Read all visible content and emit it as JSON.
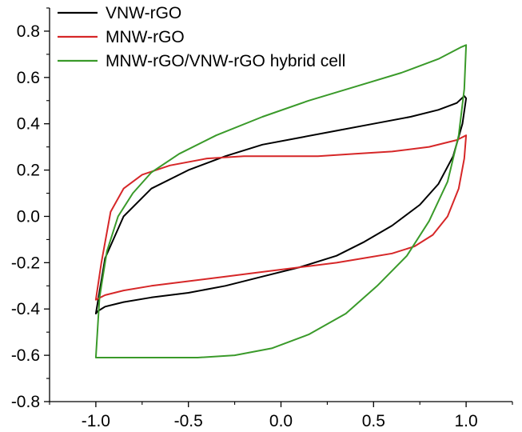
{
  "chart_data": {
    "type": "line",
    "title": "",
    "xlabel": "",
    "ylabel": "",
    "xlim": [
      -1.25,
      1.25
    ],
    "ylim": [
      -0.8,
      0.9
    ],
    "xticks": [
      -1.0,
      -0.5,
      0.0,
      0.5,
      1.0
    ],
    "xtick_labels": [
      "-1.0",
      "-0.5",
      "0.0",
      "0.5",
      "1.0"
    ],
    "yticks": [
      -0.8,
      -0.6,
      -0.4,
      -0.2,
      0.0,
      0.2,
      0.4,
      0.6,
      0.8
    ],
    "ytick_labels": [
      "-0.8",
      "-0.6",
      "-0.4",
      "-0.2",
      "0.0",
      "0.2",
      "0.4",
      "0.6",
      "0.8"
    ],
    "grid": false,
    "legend_position": "top-left",
    "series": [
      {
        "name": "VNW-rGO",
        "color": "#000000",
        "x": [
          -1.0,
          -0.95,
          -0.85,
          -0.7,
          -0.5,
          -0.3,
          -0.1,
          0.1,
          0.3,
          0.5,
          0.7,
          0.85,
          0.95,
          0.99,
          1.0,
          0.98,
          0.93,
          0.85,
          0.75,
          0.6,
          0.45,
          0.3,
          0.1,
          -0.1,
          -0.3,
          -0.5,
          -0.7,
          -0.85,
          -0.95,
          -0.99,
          -1.0
        ],
        "y": [
          -0.42,
          -0.18,
          0.0,
          0.12,
          0.2,
          0.26,
          0.31,
          0.34,
          0.37,
          0.4,
          0.43,
          0.46,
          0.49,
          0.52,
          0.51,
          0.4,
          0.26,
          0.14,
          0.05,
          -0.04,
          -0.11,
          -0.17,
          -0.22,
          -0.26,
          -0.3,
          -0.33,
          -0.35,
          -0.37,
          -0.39,
          -0.41,
          -0.42
        ]
      },
      {
        "name": "MNW-rGO",
        "color": "#d62728",
        "x": [
          -1.0,
          -0.97,
          -0.92,
          -0.85,
          -0.75,
          -0.6,
          -0.4,
          -0.2,
          0.0,
          0.2,
          0.4,
          0.6,
          0.8,
          0.95,
          1.0,
          0.99,
          0.96,
          0.9,
          0.82,
          0.72,
          0.6,
          0.45,
          0.3,
          0.1,
          -0.1,
          -0.3,
          -0.5,
          -0.7,
          -0.85,
          -0.95,
          -1.0
        ],
        "y": [
          -0.36,
          -0.2,
          0.02,
          0.12,
          0.18,
          0.22,
          0.25,
          0.26,
          0.26,
          0.26,
          0.27,
          0.28,
          0.3,
          0.33,
          0.35,
          0.25,
          0.12,
          0.0,
          -0.08,
          -0.13,
          -0.16,
          -0.18,
          -0.2,
          -0.22,
          -0.24,
          -0.26,
          -0.28,
          -0.3,
          -0.32,
          -0.34,
          -0.36
        ]
      },
      {
        "name": "MNW-rGO/VNW-rGO hybrid cell",
        "color": "#3a9a2a",
        "x": [
          -1.0,
          -0.98,
          -0.94,
          -0.88,
          -0.8,
          -0.7,
          -0.55,
          -0.35,
          -0.1,
          0.15,
          0.4,
          0.65,
          0.85,
          0.97,
          1.0,
          0.99,
          0.96,
          0.9,
          0.8,
          0.68,
          0.52,
          0.35,
          0.15,
          -0.05,
          -0.25,
          -0.45,
          -0.65,
          -0.8,
          -0.92,
          -0.98,
          -1.0
        ],
        "y": [
          -0.61,
          -0.35,
          -0.15,
          0.0,
          0.1,
          0.19,
          0.27,
          0.35,
          0.43,
          0.5,
          0.56,
          0.62,
          0.68,
          0.73,
          0.74,
          0.55,
          0.35,
          0.15,
          -0.02,
          -0.17,
          -0.3,
          -0.42,
          -0.51,
          -0.57,
          -0.6,
          -0.61,
          -0.61,
          -0.61,
          -0.61,
          -0.61,
          -0.61
        ]
      }
    ]
  }
}
